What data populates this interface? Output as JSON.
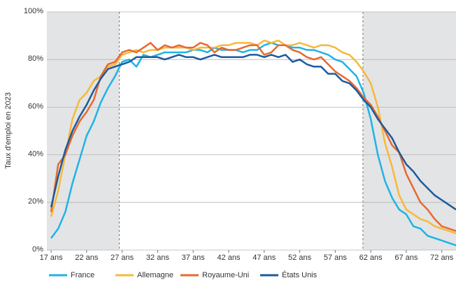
{
  "chart_data": {
    "type": "line",
    "y_label": "Taux d'emploi en 2023",
    "x": [
      17,
      18,
      19,
      20,
      21,
      22,
      23,
      24,
      25,
      26,
      27,
      28,
      29,
      30,
      31,
      32,
      33,
      34,
      35,
      36,
      37,
      38,
      39,
      40,
      41,
      42,
      43,
      44,
      45,
      46,
      47,
      48,
      49,
      50,
      51,
      52,
      53,
      54,
      55,
      56,
      57,
      58,
      59,
      60,
      61,
      62,
      63,
      64,
      65,
      66,
      67,
      68,
      69,
      70,
      71,
      72,
      73,
      74
    ],
    "series": [
      {
        "name": "France",
        "color": "#1fb3e6",
        "values": [
          5,
          9,
          16,
          28,
          38,
          48,
          54,
          62,
          68,
          73,
          79,
          80,
          77,
          82,
          81,
          82,
          83,
          83,
          83,
          83,
          84,
          84,
          83,
          85,
          84,
          84,
          84,
          83,
          84,
          84,
          86,
          87,
          86,
          86,
          85,
          85,
          84,
          84,
          83,
          82,
          80,
          79,
          76,
          73,
          66,
          55,
          40,
          29,
          22,
          17,
          15,
          10,
          9,
          6,
          5,
          4,
          3,
          2
        ]
      },
      {
        "name": "Allemagne",
        "color": "#f6b93b",
        "values": [
          14,
          25,
          40,
          55,
          63,
          66,
          71,
          73,
          77,
          78,
          82,
          83,
          84,
          83,
          84,
          84,
          85,
          85,
          85,
          85,
          84,
          85,
          85,
          85,
          86,
          86,
          87,
          87,
          87,
          86,
          88,
          87,
          88,
          86,
          86,
          87,
          86,
          85,
          86,
          86,
          85,
          83,
          82,
          79,
          75,
          70,
          60,
          45,
          35,
          23,
          17,
          15,
          13,
          12,
          10,
          9,
          8,
          7
        ]
      },
      {
        "name": "Royaume-Uni",
        "color": "#e8692d",
        "values": [
          16,
          36,
          40,
          48,
          54,
          58,
          63,
          73,
          78,
          79,
          83,
          84,
          83,
          85,
          87,
          84,
          86,
          85,
          86,
          85,
          85,
          87,
          86,
          83,
          85,
          84,
          84,
          85,
          86,
          86,
          82,
          83,
          86,
          86,
          84,
          83,
          81,
          80,
          81,
          78,
          75,
          73,
          71,
          68,
          64,
          61,
          56,
          50,
          44,
          41,
          32,
          26,
          20,
          17,
          13,
          10,
          9,
          8
        ]
      },
      {
        "name": "États Unis",
        "color": "#1b5b9c",
        "values": [
          18,
          31,
          42,
          50,
          56,
          61,
          67,
          72,
          76,
          77,
          78,
          79,
          81,
          81,
          81,
          81,
          80,
          81,
          82,
          81,
          81,
          80,
          81,
          82,
          81,
          81,
          81,
          81,
          82,
          82,
          81,
          82,
          81,
          82,
          79,
          80,
          78,
          77,
          77,
          74,
          74,
          71,
          70,
          67,
          63,
          60,
          55,
          51,
          47,
          41,
          36,
          33,
          29,
          26,
          23,
          21,
          19,
          17
        ]
      }
    ],
    "xlim": [
      16.4,
      74
    ],
    "ylim": [
      0,
      100
    ],
    "xticks": [
      {
        "value": 17,
        "label": "17 ans"
      },
      {
        "value": 22,
        "label": "22 ans"
      },
      {
        "value": 27,
        "label": "27 ans"
      },
      {
        "value": 32,
        "label": "32 ans"
      },
      {
        "value": 37,
        "label": "37 ans"
      },
      {
        "value": 42,
        "label": "42 ans"
      },
      {
        "value": 47,
        "label": "47 ans"
      },
      {
        "value": 52,
        "label": "52 ans"
      },
      {
        "value": 57,
        "label": "57 ans"
      },
      {
        "value": 62,
        "label": "62 ans"
      },
      {
        "value": 67,
        "label": "67 ans"
      },
      {
        "value": 72,
        "label": "72 ans"
      }
    ],
    "yticks": [
      {
        "value": 0,
        "label": "0%"
      },
      {
        "value": 20,
        "label": "20%"
      },
      {
        "value": 40,
        "label": "40%"
      },
      {
        "value": 60,
        "label": "60%"
      },
      {
        "value": 80,
        "label": "80%"
      },
      {
        "value": 100,
        "label": "100%"
      }
    ],
    "shaded_ranges": [
      [
        16.4,
        26.6
      ],
      [
        60.9,
        74
      ]
    ],
    "marker_lines": [
      26.6,
      60.9
    ],
    "grid": true,
    "legend": "bottom"
  }
}
